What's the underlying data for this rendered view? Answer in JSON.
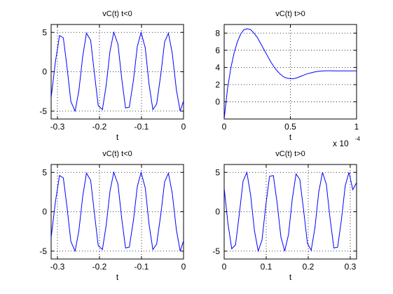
{
  "chart_data": [
    {
      "type": "line",
      "title": "vC(t) t<0",
      "xlabel": "t",
      "ylabel": "",
      "xlim": [
        -0.315,
        0
      ],
      "ylim": [
        -6,
        6
      ],
      "xticks": [
        -0.3,
        -0.2,
        -0.1,
        0
      ],
      "xtick_labels": [
        "-0.3",
        "-0.2",
        "-0.1",
        "0"
      ],
      "yticks": [
        -5,
        0,
        5
      ],
      "ytick_labels": [
        "-5",
        "0",
        "5"
      ],
      "grid": true,
      "color": "#0000ff",
      "series": [
        {
          "x": [
            -0.315,
            -0.305,
            -0.295,
            -0.286,
            -0.277,
            -0.268,
            -0.258,
            -0.249,
            -0.24,
            -0.231,
            -0.221,
            -0.212,
            -0.203,
            -0.193,
            -0.184,
            -0.175,
            -0.166,
            -0.156,
            -0.147,
            -0.138,
            -0.129,
            -0.119,
            -0.11,
            -0.101,
            -0.091,
            -0.082,
            -0.073,
            -0.064,
            -0.054,
            -0.045,
            -0.036,
            -0.027,
            -0.017,
            -0.008,
            0
          ],
          "y": [
            -3.3,
            1.2,
            4.6,
            4.3,
            0.5,
            -3.8,
            -5.0,
            -2.4,
            1.9,
            4.9,
            4.0,
            -0.2,
            -4.3,
            -4.8,
            -1.7,
            2.6,
            5.0,
            3.5,
            -0.9,
            -4.6,
            -4.5,
            -1.0,
            3.2,
            5.0,
            3.0,
            -1.6,
            -4.8,
            -4.1,
            -0.3,
            3.8,
            4.9,
            2.4,
            -2.3,
            -5.0,
            -3.7
          ]
        }
      ]
    },
    {
      "type": "line",
      "title": "vC(t) t>0",
      "xlabel": "t",
      "ylabel": "",
      "xlim": [
        0,
        1
      ],
      "x_multiplier": "x 10",
      "x_multiplier_exponent": "-4",
      "ylim": [
        -2,
        9
      ],
      "xticks": [
        0,
        0.5,
        1
      ],
      "xtick_labels": [
        "0",
        "0.5",
        "1"
      ],
      "yticks": [
        0,
        2,
        4,
        6,
        8
      ],
      "ytick_labels": [
        "0",
        "2",
        "4",
        "6",
        "8"
      ],
      "grid": true,
      "color": "#0000ff",
      "series": [
        {
          "x": [
            0,
            0.025,
            0.05,
            0.075,
            0.1,
            0.125,
            0.15,
            0.175,
            0.2,
            0.225,
            0.25,
            0.275,
            0.3,
            0.325,
            0.35,
            0.375,
            0.4,
            0.425,
            0.45,
            0.475,
            0.5,
            0.525,
            0.55,
            0.575,
            0.6,
            0.625,
            0.65,
            0.675,
            0.7,
            0.725,
            0.75,
            0.775,
            0.8,
            0.825,
            0.85,
            0.875,
            0.9,
            0.95,
            1.0
          ],
          "y": [
            -2.0,
            1.5,
            3.9,
            5.7,
            7.0,
            7.9,
            8.4,
            8.5,
            8.4,
            8.0,
            7.5,
            6.8,
            6.1,
            5.4,
            4.7,
            4.1,
            3.6,
            3.2,
            2.9,
            2.75,
            2.7,
            2.7,
            2.8,
            2.95,
            3.1,
            3.25,
            3.35,
            3.45,
            3.52,
            3.57,
            3.6,
            3.61,
            3.61,
            3.6,
            3.6,
            3.6,
            3.6,
            3.6,
            3.6
          ]
        }
      ]
    },
    {
      "type": "line",
      "title": "vC(t) t<0",
      "xlabel": "t",
      "ylabel": "",
      "xlim": [
        -0.315,
        0
      ],
      "ylim": [
        -6,
        6
      ],
      "xticks": [
        -0.3,
        -0.2,
        -0.1,
        0
      ],
      "xtick_labels": [
        "-0.3",
        "-0.2",
        "-0.1",
        "0"
      ],
      "yticks": [
        -5,
        0,
        5
      ],
      "ytick_labels": [
        "-5",
        "0",
        "5"
      ],
      "grid": true,
      "color": "#0000ff",
      "series": [
        {
          "x": [
            -0.315,
            -0.305,
            -0.295,
            -0.286,
            -0.277,
            -0.268,
            -0.258,
            -0.249,
            -0.24,
            -0.231,
            -0.221,
            -0.212,
            -0.203,
            -0.193,
            -0.184,
            -0.175,
            -0.166,
            -0.156,
            -0.147,
            -0.138,
            -0.129,
            -0.119,
            -0.11,
            -0.101,
            -0.091,
            -0.082,
            -0.073,
            -0.064,
            -0.054,
            -0.045,
            -0.036,
            -0.027,
            -0.017,
            -0.008,
            0
          ],
          "y": [
            -3.3,
            1.2,
            4.6,
            4.3,
            0.5,
            -3.8,
            -5.0,
            -2.4,
            1.9,
            4.9,
            4.0,
            -0.2,
            -4.3,
            -4.8,
            -1.7,
            2.6,
            5.0,
            3.5,
            -0.9,
            -4.6,
            -4.5,
            -1.0,
            3.2,
            5.0,
            3.0,
            -1.6,
            -4.8,
            -4.1,
            -0.3,
            3.8,
            4.9,
            2.4,
            -2.3,
            -5.0,
            -3.7
          ]
        }
      ]
    },
    {
      "type": "line",
      "title": "vC(t) t>0",
      "xlabel": "t",
      "ylabel": "",
      "xlim": [
        0,
        0.315
      ],
      "ylim": [
        -6,
        6
      ],
      "xticks": [
        0,
        0.1,
        0.2,
        0.3
      ],
      "xtick_labels": [
        "0",
        "0.1",
        "0.2",
        "0.3"
      ],
      "yticks": [
        -5,
        0,
        5
      ],
      "ytick_labels": [
        "-5",
        "0",
        "5"
      ],
      "grid": true,
      "color": "#0000ff",
      "series": [
        {
          "x": [
            0,
            0.009,
            0.018,
            0.027,
            0.036,
            0.045,
            0.054,
            0.063,
            0.072,
            0.081,
            0.09,
            0.099,
            0.108,
            0.117,
            0.126,
            0.135,
            0.144,
            0.153,
            0.162,
            0.171,
            0.18,
            0.189,
            0.198,
            0.207,
            0.216,
            0.225,
            0.234,
            0.243,
            0.252,
            0.261,
            0.27,
            0.279,
            0.288,
            0.297,
            0.306,
            0.315
          ],
          "y": [
            3.0,
            -1.5,
            -4.7,
            -4.2,
            -0.3,
            3.9,
            5.0,
            2.1,
            -2.4,
            -5.0,
            -3.6,
            0.8,
            4.5,
            4.6,
            1.1,
            -3.2,
            -5.0,
            -2.9,
            1.6,
            4.8,
            4.1,
            0.2,
            -4.0,
            -4.9,
            -2.0,
            2.5,
            5.0,
            3.5,
            -0.9,
            -4.6,
            -4.5,
            -1.0,
            3.3,
            5.0,
            2.8,
            3.7
          ]
        }
      ]
    }
  ]
}
